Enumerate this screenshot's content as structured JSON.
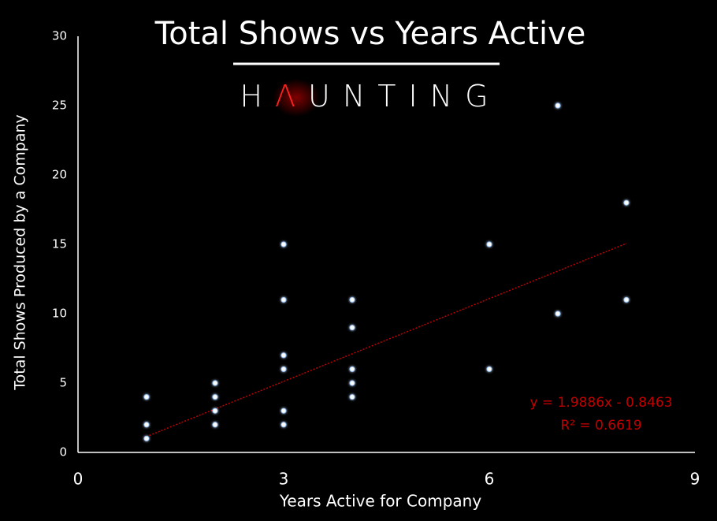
{
  "chart_data": {
    "type": "scatter",
    "title": "Total Shows vs Years Active",
    "logo": [
      "H",
      "Λ",
      "UNTING"
    ],
    "x_label": "Years Active for Company",
    "y_label": "Total Shows Produced by a Company",
    "x": [
      1,
      1,
      1,
      2,
      2,
      2,
      2,
      3,
      3,
      3,
      3,
      3,
      3,
      4,
      4,
      4,
      4,
      4,
      6,
      6,
      7,
      7,
      8,
      8
    ],
    "y": [
      4,
      2,
      1,
      5,
      4,
      3,
      2,
      15,
      11,
      7,
      6,
      3,
      2,
      11,
      9,
      6,
      5,
      4,
      15,
      6,
      25,
      10,
      18,
      11
    ],
    "color": "#ffffff",
    "xlim": [
      0,
      9
    ],
    "xticks": [
      0,
      3,
      6,
      9
    ],
    "ylim": [
      0,
      30
    ],
    "yticks": [
      0,
      5,
      10,
      15,
      20,
      25,
      30
    ],
    "grid": false,
    "trendline": {
      "equation": "y = 1.9886x - 0.8463",
      "r_squared": "R² = 0.6619",
      "slope": 1.9886,
      "intercept": -0.8463,
      "x_range": [
        1,
        8
      ],
      "color": "#c00000"
    }
  }
}
